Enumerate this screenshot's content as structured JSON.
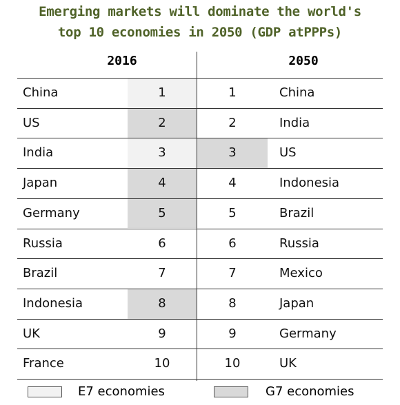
{
  "title": {
    "line1": "Emerging markets will dominate the world's",
    "line2": "top 10 economies in 2050 (GDP atPPPs)"
  },
  "table": {
    "headers": [
      "2016",
      "2050"
    ],
    "rows": [
      [
        "China",
        "1",
        "1",
        "China"
      ],
      [
        "US",
        "2",
        "2",
        "India"
      ],
      [
        "India",
        "3",
        "3",
        "US"
      ],
      [
        "Japan",
        "4",
        "4",
        "Indonesia"
      ],
      [
        "Germany",
        "5",
        "5",
        "Brazil"
      ],
      [
        "Russia",
        "6",
        "6",
        "Russia"
      ],
      [
        "Brazil",
        "7",
        "7",
        "Mexico"
      ],
      [
        "Indonesia",
        "8",
        "8",
        "Japan"
      ],
      [
        "UK",
        "9",
        "9",
        "Germany"
      ],
      [
        "France",
        "10",
        "10",
        "UK"
      ]
    ],
    "fills_2016": [
      "#f2f2f2",
      "#d9d9d9",
      "#f2f2f2",
      "#d9d9d9",
      "#d9d9d9",
      "#ffffff",
      "#ffffff",
      "#d9d9d9",
      "#ffffff",
      "#ffffff"
    ],
    "fills_2050": [
      "#ffffff",
      "#ffffff",
      "#d9d9d9",
      "#ffffff",
      "#ffffff",
      "#ffffff",
      "#ffffff",
      "#ffffff",
      "#ffffff",
      "#ffffff"
    ]
  },
  "legend": [
    {
      "label": "E7 economies",
      "color": "#f2f2f2"
    },
    {
      "label": "G7 economies",
      "color": "#d9d9d9"
    }
  ]
}
